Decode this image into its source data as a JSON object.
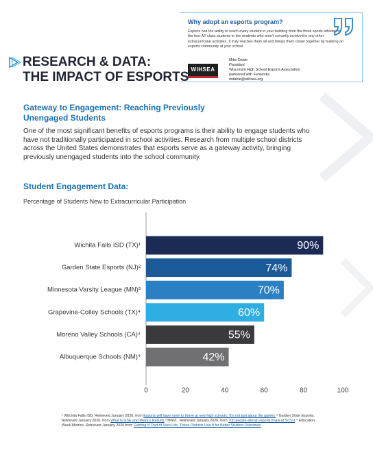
{
  "quote": {
    "title": "Why adopt an esports program?",
    "body": "Esports has the ability to reach every student in your building from the three sports athletes to the four AP class students to the students who aren't currently involved in any other extracurricular activities. It truly reaches them all and brings them closer together by building an esports community at your school.",
    "logo": "WIHSEA",
    "attribution": [
      "Mike Dahle",
      "President",
      "Wisconsin High School Esports Association",
      "partnered with Fenworks",
      "mdahle@wihsea.org"
    ]
  },
  "header": {
    "title": [
      "RESEARCH & DATA:",
      "THE IMPACT OF ESPORTS"
    ]
  },
  "section": {
    "heading": "Gateway to Engagement: Reaching Previously Unengaged Students",
    "paragraph": "One of the most significant benefits of esports programs is their ability to engage students who have not traditionally participated in school activities. Research from multiple school districts across the United States demonstrates that esports serve as a gateway activity, bringing previously unengaged students into the school community.",
    "data_heading": "Student Engagement Data:"
  },
  "chart_data": {
    "type": "bar",
    "orientation": "horizontal",
    "title": "Percentage of Students New to Extracurricular Participation",
    "categories": [
      "Wichita Falls ISD (TX)¹",
      "Garden State Esports (NJ)²",
      "Minnesota Varsity League (MN)³",
      "Grapevine-Colley Schools (TX)⁴",
      "Moreno Valley Schools (CA)⁴",
      "Albuquerque Schools (NM)⁴"
    ],
    "values": [
      90,
      74,
      70,
      60,
      55,
      42
    ],
    "value_labels": [
      "90%",
      "74%",
      "70%",
      "60%",
      "55%",
      "42%"
    ],
    "colors": [
      "#1b2b55",
      "#1a5a98",
      "#2a80c2",
      "#2eaee2",
      "#3a3a3c",
      "#707072"
    ],
    "xlim": [
      0,
      100
    ],
    "xticks": [
      0,
      20,
      40,
      60,
      80,
      100
    ]
  },
  "footnotes": [
    {
      "text": "¹ Witchita Falls ISD. Retrieved January 2026, from ",
      "link": "Esports will have room to thrive at new high schools: 'It's not just about the games'"
    },
    {
      "text": "² Garden State Esports. Retrieved January 2026, from ",
      "link": "What is GSE and Metrics Results"
    },
    {
      "text": "³ MNVL. Retrieved January 2026, from ",
      "link": "700 people attend esports finals at SCSU"
    },
    {
      "text": "⁴ Education Week Metrics. Retrieved January 2026 from ",
      "link": "Gaming Is Part of Teen Life. These Districts Use It for Better Student Outcomes"
    }
  ]
}
